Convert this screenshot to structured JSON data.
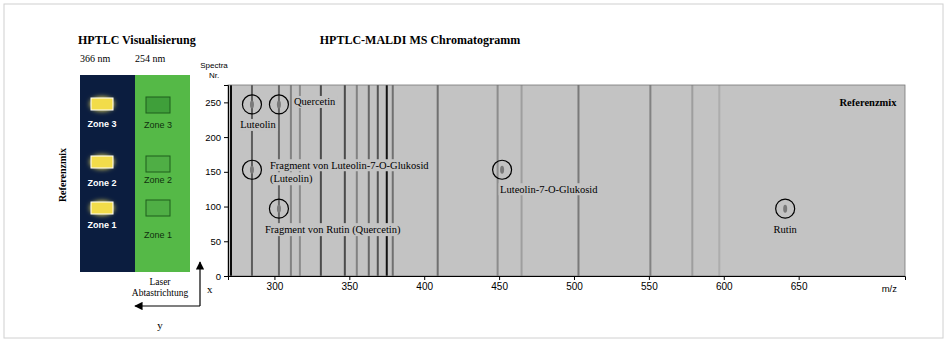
{
  "left_panel": {
    "title": "HPTLC Visualisierung",
    "columns": [
      {
        "label": "366 nm",
        "zones": [
          "Zone 3",
          "Zone 2",
          "Zone 1"
        ]
      },
      {
        "label": "254 nm",
        "zones": [
          "Zone 3",
          "Zone 2",
          "Zone 1"
        ]
      }
    ],
    "side_label": "Referenzmix",
    "scan_label": [
      "Laser",
      "Abtastrichtung"
    ],
    "axis_labels": [
      "x",
      "y"
    ]
  },
  "chart_data": {
    "type": "ms_image",
    "title": "HPTLC-MALDI MS Chromatogramm",
    "panel_label": "Referenzmix",
    "x_label": "m/z",
    "y_label": [
      "Spectra",
      "Nr."
    ],
    "xlim": [
      269,
      721
    ],
    "ylim": [
      0,
      275
    ],
    "xticks": [
      300,
      350,
      400,
      450,
      500,
      550,
      600,
      650
    ],
    "yticks": [
      0,
      50,
      100,
      150,
      200,
      250
    ],
    "peaks": {
      "x": [
        271,
        285,
        303,
        311,
        317,
        331,
        347,
        355,
        363,
        369,
        375,
        379,
        409,
        449,
        465,
        503,
        551,
        579,
        597
      ],
      "intensity": [
        100,
        55,
        50,
        35,
        30,
        65,
        65,
        35,
        50,
        60,
        95,
        45,
        45,
        30,
        20,
        40,
        35,
        20,
        12
      ]
    },
    "annotations": [
      {
        "x": 285,
        "y": 247,
        "text": [
          "Luteolin"
        ]
      },
      {
        "x": 303,
        "y": 247,
        "text": [
          "Quercetin"
        ]
      },
      {
        "x": 285,
        "y": 153,
        "text": [
          "Fragment von Luteolin-7-O-Glukosid",
          "(Luteolin)"
        ]
      },
      {
        "x": 303,
        "y": 97,
        "text": [
          "Fragment von Rutin (Quercetin)"
        ]
      },
      {
        "x": 452,
        "y": 153,
        "text": [
          "Luteolin-7-O-Glukosid"
        ]
      },
      {
        "x": 641,
        "y": 97,
        "text": [
          "Rutin"
        ]
      }
    ]
  }
}
